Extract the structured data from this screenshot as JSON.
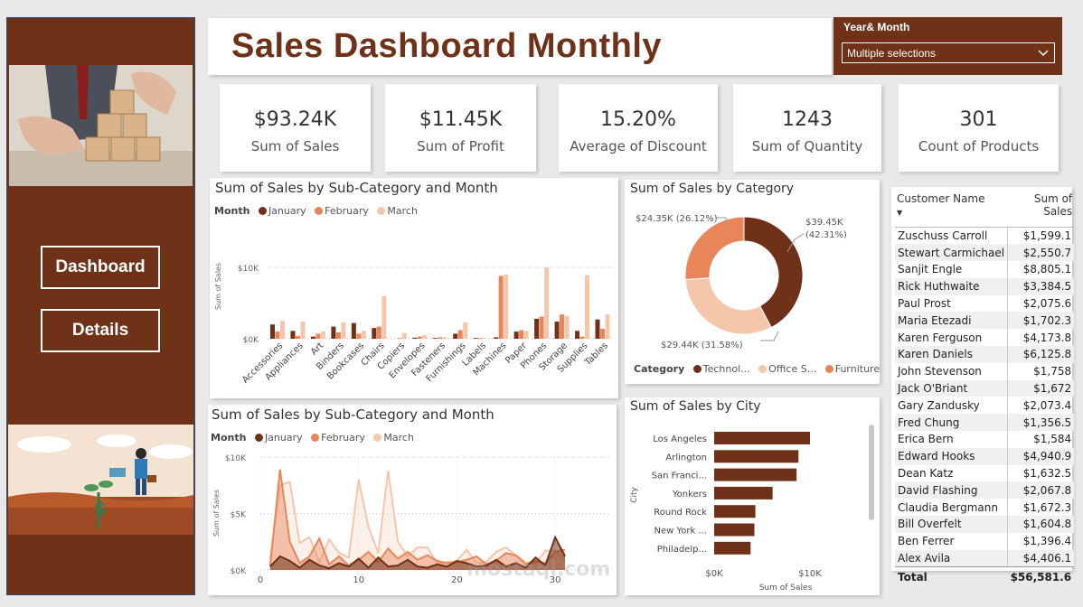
{
  "title": "Sales Dashboard Monthly",
  "slicer": {
    "label": "Year& Month",
    "value": "Multiple selections"
  },
  "nav": {
    "dashboard": "Dashboard",
    "details": "Details"
  },
  "kpis": [
    {
      "value": "$93.24K",
      "label": "Sum of Sales"
    },
    {
      "value": "$11.45K",
      "label": "Sum of Profit"
    },
    {
      "value": "15.20%",
      "label": "Average of Discount"
    },
    {
      "value": "1243",
      "label": "Sum of Quantity"
    },
    {
      "value": "301",
      "label": "Count of Products"
    }
  ],
  "colors": {
    "brand": "#6f3219",
    "jan": "#6f3219",
    "feb": "#e8865a",
    "mar": "#f5c6aa",
    "tech": "#6f3219",
    "office": "#f5c6aa",
    "furniture": "#e8865a"
  },
  "legend_month": {
    "title": "Month",
    "items": [
      "January",
      "February",
      "March"
    ]
  },
  "legend_category": {
    "title": "Category",
    "items": [
      "Technol...",
      "Office S...",
      "Furniture"
    ]
  },
  "chart_data": [
    {
      "type": "bar",
      "title": "Sum of Sales by Sub-Category and Month",
      "ylabel": "Sum of Sales",
      "yticks": [
        "$0K",
        "$10K"
      ],
      "ylim": [
        0,
        13000
      ],
      "categories": [
        "Accessories",
        "Appliances",
        "Art",
        "Binders",
        "Bookcases",
        "Chairs",
        "Copiers",
        "Envelopes",
        "Fasteners",
        "Furnishings",
        "Labels",
        "Machines",
        "Paper",
        "Phones",
        "Storage",
        "Supplies",
        "Tables"
      ],
      "series": [
        {
          "name": "January",
          "values": [
            2000,
            1100,
            300,
            1700,
            2200,
            1500,
            0,
            150,
            100,
            700,
            100,
            200,
            1000,
            2800,
            2400,
            1100,
            2700
          ]
        },
        {
          "name": "February",
          "values": [
            1000,
            400,
            700,
            900,
            700,
            1700,
            100,
            300,
            200,
            1200,
            100,
            8800,
            1200,
            3100,
            3400,
            300,
            1400
          ]
        },
        {
          "name": "March",
          "values": [
            2500,
            2400,
            1000,
            2300,
            1100,
            6000,
            800,
            500,
            200,
            2300,
            100,
            9000,
            1100,
            10000,
            3200,
            8900,
            3400
          ]
        }
      ]
    },
    {
      "type": "pie",
      "title": "Sum of Sales by Category",
      "slices": [
        {
          "name": "Technol...",
          "value": 39450,
          "label": "$39.45K (42.31%)"
        },
        {
          "name": "Office S...",
          "value": 29440,
          "label": "$29.44K (31.58%)"
        },
        {
          "name": "Furniture",
          "value": 24350,
          "label": "$24.35K (26.12%)"
        }
      ]
    },
    {
      "type": "area",
      "title": "Sum of Sales by Sub-Category and Month",
      "ylabel": "Sum of Sales",
      "xticks": [
        0,
        10,
        20,
        30
      ],
      "yticks": [
        "$0K",
        "$5K",
        "$10K"
      ],
      "xlim": [
        0,
        31
      ],
      "ylim": [
        0,
        10000
      ],
      "x": [
        1,
        2,
        3,
        4,
        5,
        6,
        7,
        8,
        9,
        10,
        11,
        12,
        13,
        14,
        15,
        16,
        17,
        18,
        19,
        20,
        21,
        22,
        23,
        24,
        25,
        26,
        27,
        28,
        29,
        30,
        31
      ],
      "series": [
        {
          "name": "January",
          "values": [
            300,
            1200,
            800,
            200,
            900,
            400,
            150,
            600,
            300,
            1000,
            200,
            1100,
            300,
            400,
            900,
            300,
            200,
            500,
            300,
            800,
            600,
            300,
            400,
            900,
            300,
            600,
            200,
            1100,
            400,
            2900,
            1200
          ]
        },
        {
          "name": "February",
          "values": [
            300,
            8900,
            2500,
            600,
            1200,
            2800,
            500,
            1200,
            400,
            900,
            1600,
            700,
            1900,
            1000,
            1600,
            900,
            1300,
            800,
            600,
            700,
            900,
            1200,
            500,
            800,
            1500,
            1300,
            500,
            800,
            600,
            1600,
            1800
          ]
        },
        {
          "name": "March",
          "values": [
            1000,
            7500,
            7800,
            2400,
            2900,
            700,
            2700,
            1500,
            1100,
            8000,
            3800,
            1500,
            8800,
            2500,
            1200,
            2000,
            2000,
            600,
            700,
            800,
            1800,
            600,
            700,
            1600,
            2000,
            1300,
            700,
            600,
            1700,
            1700,
            900
          ]
        }
      ]
    },
    {
      "type": "bar",
      "orientation": "horizontal",
      "title": "Sum of Sales by City",
      "xlabel": "Sum of Sales",
      "ylabel": "City",
      "xticks": [
        "$0K",
        "$10K"
      ],
      "xlim": [
        0,
        10000
      ],
      "categories": [
        "Los Angeles",
        "Arlington",
        "San Franci...",
        "Yonkers",
        "Round Rock",
        "New York ...",
        "Philadelp..."
      ],
      "values": [
        10000,
        8800,
        8600,
        6100,
        4300,
        4200,
        3800
      ]
    }
  ],
  "table": {
    "headers": [
      "Customer Name",
      "Sum of Sales"
    ],
    "rows": [
      [
        "Zuschuss Carroll",
        "$1,599.1"
      ],
      [
        "Stewart Carmichael",
        "$2,550.7"
      ],
      [
        "Sanjit Engle",
        "$8,805.1"
      ],
      [
        "Rick Huthwaite",
        "$3,384.5"
      ],
      [
        "Paul Prost",
        "$2,075.6"
      ],
      [
        "Maria Etezadi",
        "$1,702.3"
      ],
      [
        "Karen Ferguson",
        "$4,173.8"
      ],
      [
        "Karen Daniels",
        "$6,125.8"
      ],
      [
        "John Stevenson",
        "$1,758"
      ],
      [
        "Jack O'Briant",
        "$1,672"
      ],
      [
        "Gary Zandusky",
        "$2,073.4"
      ],
      [
        "Fred Chung",
        "$1,356.5"
      ],
      [
        "Erica Bern",
        "$1,584"
      ],
      [
        "Edward Hooks",
        "$4,940.9"
      ],
      [
        "Dean Katz",
        "$1,632.5"
      ],
      [
        "David Flashing",
        "$2,067.8"
      ],
      [
        "Claudia Bergmann",
        "$1,672.3"
      ],
      [
        "Bill Overfelt",
        "$1,604.8"
      ],
      [
        "Ben Ferrer",
        "$1,396.4"
      ],
      [
        "Alex Avila",
        "$4,406.1"
      ]
    ],
    "total_label": "Total",
    "total_value": "$56,581.6"
  },
  "watermark": {
    "text": "mostaql.com"
  }
}
